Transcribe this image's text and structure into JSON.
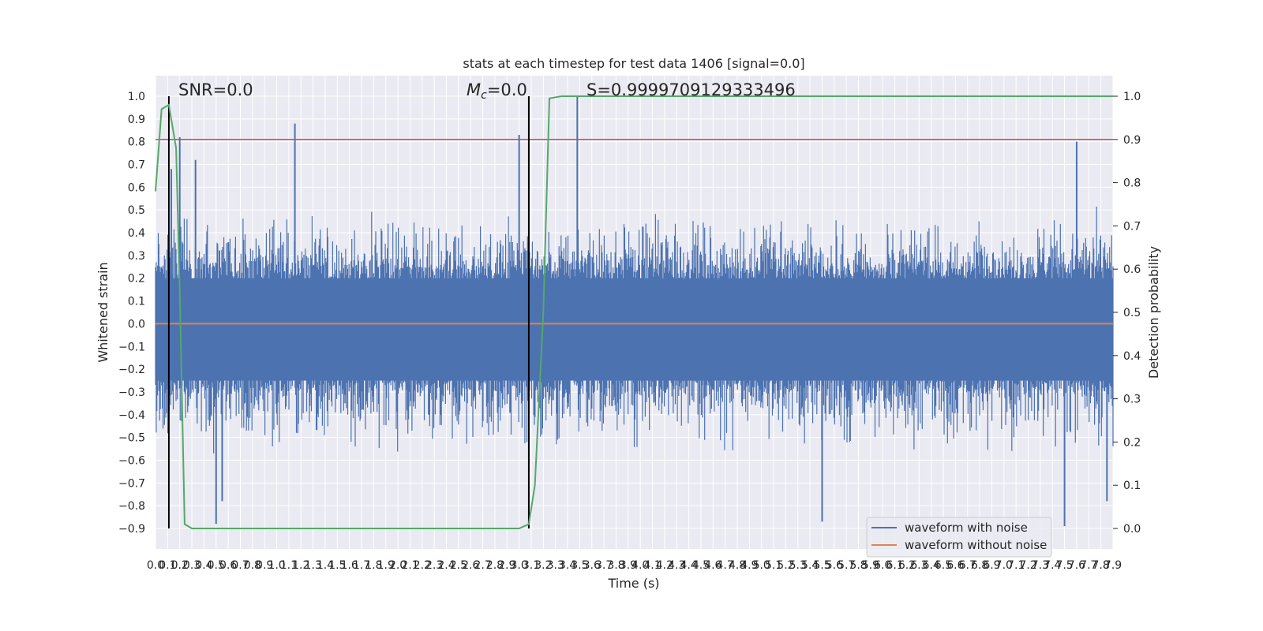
{
  "chart_data": {
    "type": "line",
    "title": "stats at each timestep for test data 1406 [signal=0.0]",
    "xlabel": "Time (s)",
    "ylabel": "Whitened strain",
    "y2label": "Detection probability",
    "xlim": [
      0.0,
      7.9
    ],
    "ylim": [
      -0.9,
      1.0
    ],
    "y2lim": [
      0.0,
      1.0
    ],
    "grid": true,
    "legend_position": "lower-right",
    "x_ticks": [
      "0.0",
      "0.1",
      "0.2",
      "0.3",
      "0.4",
      "0.5",
      "0.6",
      "0.7",
      "0.8",
      "0.9",
      "1.0",
      "1.1",
      "1.2",
      "1.3",
      "1.4",
      "1.5",
      "1.6",
      "1.7",
      "1.8",
      "1.9",
      "2.0",
      "2.1",
      "2.2",
      "2.3",
      "2.4",
      "2.5",
      "2.6",
      "2.7",
      "2.8",
      "2.9",
      "3.0",
      "3.1",
      "3.2",
      "3.3",
      "3.4",
      "3.5",
      "3.6",
      "3.7",
      "3.8",
      "3.9",
      "4.0",
      "4.1",
      "4.2",
      "4.3",
      "4.4",
      "4.5",
      "4.6",
      "4.7",
      "4.8",
      "4.9",
      "5.0",
      "5.1",
      "5.2",
      "5.3",
      "5.4",
      "5.5",
      "5.6",
      "5.7",
      "5.8",
      "5.9",
      "6.0",
      "6.1",
      "6.2",
      "6.3",
      "6.4",
      "6.5",
      "6.6",
      "6.7",
      "6.8",
      "6.9",
      "7.0",
      "7.1",
      "7.2",
      "7.3",
      "7.4",
      "7.5",
      "7.6",
      "7.7",
      "7.8",
      "7.9"
    ],
    "y_ticks": [
      "1.0",
      "0.9",
      "0.8",
      "0.7",
      "0.6",
      "0.5",
      "0.4",
      "0.3",
      "0.2",
      "0.1",
      "0.0",
      "-0.1",
      "-0.2",
      "-0.3",
      "-0.4",
      "-0.5",
      "-0.6",
      "-0.7",
      "-0.8",
      "-0.9"
    ],
    "y2_ticks": [
      "1.0",
      "0.9",
      "0.8",
      "0.7",
      "0.6",
      "0.5",
      "0.4",
      "0.3",
      "0.2",
      "0.1",
      "0.0"
    ],
    "annotations": {
      "snr": "SNR=0.0",
      "mc_symbol": "M",
      "mc_sub": "c",
      "mc_value": "=0.0",
      "s": "S=0.9999709129333496"
    },
    "series": [
      {
        "name": "waveform with noise",
        "color": "#4c72b0",
        "envelope_typical_upper": 0.35,
        "envelope_typical_lower": -0.4,
        "peaks": [
          {
            "x": 0.13,
            "y": 0.68
          },
          {
            "x": 0.2,
            "y": 0.82
          },
          {
            "x": 0.33,
            "y": 0.72
          },
          {
            "x": 1.15,
            "y": 0.88
          },
          {
            "x": 3.0,
            "y": 0.83
          },
          {
            "x": 3.48,
            "y": 1.0
          },
          {
            "x": 7.6,
            "y": 0.8
          },
          {
            "x": 0.5,
            "y": -0.88
          },
          {
            "x": 0.55,
            "y": -0.78
          },
          {
            "x": 5.5,
            "y": -0.87
          },
          {
            "x": 7.5,
            "y": -0.89
          },
          {
            "x": 7.85,
            "y": -0.78
          }
        ]
      },
      {
        "name": "waveform without noise",
        "color": "#dd8452",
        "values": [
          0.0
        ]
      },
      {
        "name": "",
        "axis": "right",
        "color": "#55a868",
        "x": [
          0.0,
          0.05,
          0.11,
          0.17,
          0.2,
          0.24,
          0.3,
          3.0,
          3.08,
          3.13,
          3.2,
          3.25,
          3.35,
          7.9
        ],
        "values": [
          0.78,
          0.97,
          0.98,
          0.88,
          0.55,
          0.01,
          0.0,
          0.0,
          0.01,
          0.1,
          0.5,
          0.995,
          1.0,
          1.0
        ]
      }
    ],
    "threshold_line": {
      "axis": "right",
      "value": 0.9,
      "color": "#c44e52"
    },
    "vertical_markers": [
      {
        "x": 0.11,
        "ylim": [
          -0.9,
          1.0
        ]
      },
      {
        "x": 3.08,
        "ylim": [
          -0.9,
          1.0
        ]
      }
    ],
    "legend": [
      "waveform with noise",
      "waveform without noise"
    ]
  }
}
